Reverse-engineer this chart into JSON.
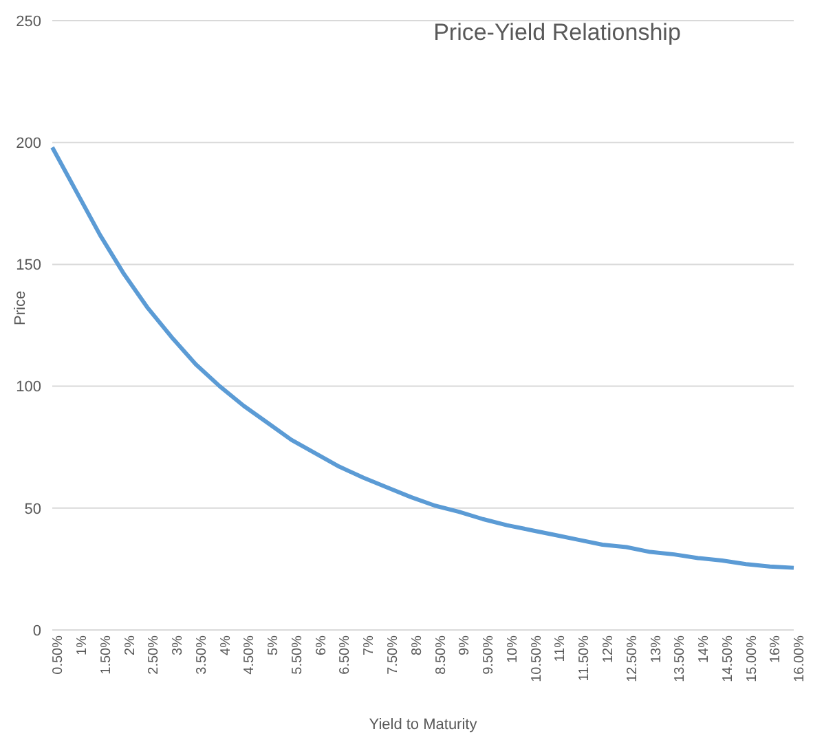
{
  "chart_data": {
    "type": "line",
    "title": "Price-Yield Relationship",
    "xlabel": "Yield to Maturity",
    "ylabel": "Price",
    "categories": [
      "0.50%",
      "1%",
      "1.50%",
      "2%",
      "2.50%",
      "3%",
      "3.50%",
      "4%",
      "4.50%",
      "5%",
      "5.50%",
      "6%",
      "6.50%",
      "7%",
      "7.50%",
      "8%",
      "8.50%",
      "9%",
      "9.50%",
      "10%",
      "10.50%",
      "11%",
      "11.50%",
      "12%",
      "12.50%",
      "13%",
      "13.50%",
      "14%",
      "14.50%",
      "15.00%",
      "16%",
      "16.00%"
    ],
    "series": [
      {
        "color": "#5b9bd5",
        "values": [
          198,
          180,
          162,
          146,
          132,
          120,
          109,
          100,
          92,
          85,
          78,
          72.5,
          67,
          62.5,
          58.5,
          54.5,
          51,
          48.5,
          45.5,
          43,
          41,
          39,
          37,
          35,
          34,
          32,
          31,
          29.5,
          28.5,
          27,
          26,
          25.5
        ]
      }
    ],
    "ylim": [
      0,
      250
    ],
    "yticks": [
      0,
      50,
      100,
      150,
      200,
      250
    ],
    "grid": "y",
    "legend": false,
    "marker": "none",
    "line_style": "solid"
  }
}
